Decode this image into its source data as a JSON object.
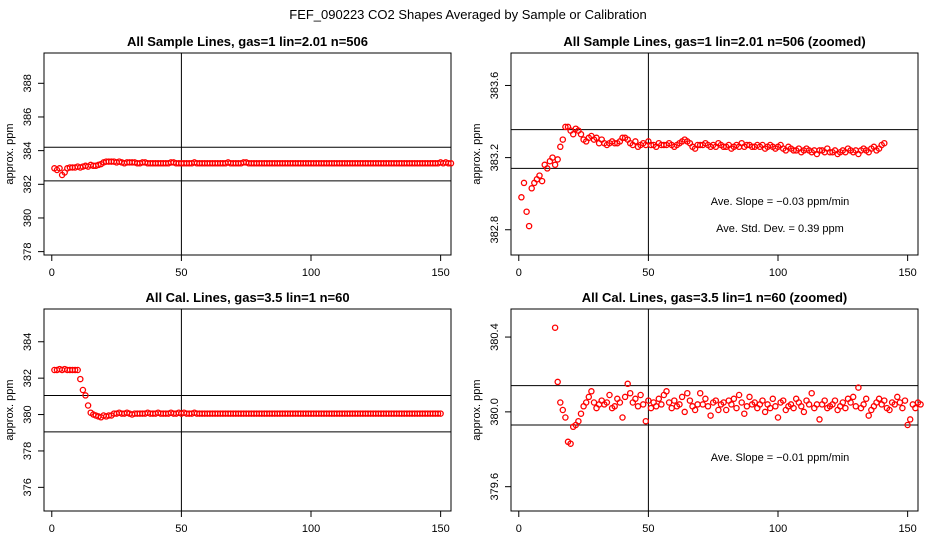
{
  "figure": {
    "title": "FEF_090223  CO2 Shapes Averaged by Sample or Calibration"
  },
  "colors": {
    "points": "#ff0000",
    "axes": "#000000"
  },
  "chart_data": [
    {
      "type": "scatter",
      "title": "All Sample Lines, gas=1 lin=2.01 n=506",
      "ylabel": "approx. ppm",
      "xlim": [
        -3,
        154
      ],
      "ylim": [
        377.8,
        389.8
      ],
      "xticks": [
        0,
        50,
        100,
        150
      ],
      "xtick_labels": [
        "0",
        "50",
        "100",
        "150"
      ],
      "yticks": [
        378,
        380,
        382,
        384,
        386,
        388
      ],
      "ytick_labels": [
        "378",
        "380",
        "382",
        "384",
        "386",
        "388"
      ],
      "hlines": [
        382.2,
        384.2
      ],
      "vline": 50,
      "annotations": [],
      "y": [
        382.95,
        382.85,
        382.95,
        382.55,
        382.7,
        382.95,
        383.0,
        383.0,
        383.0,
        383.05,
        383.0,
        383.05,
        383.1,
        383.05,
        383.15,
        383.1,
        383.1,
        383.15,
        383.2,
        383.3,
        383.35,
        383.35,
        383.35,
        383.35,
        383.3,
        383.35,
        383.3,
        383.25,
        383.3,
        383.3,
        383.3,
        383.3,
        383.25,
        383.25,
        383.3,
        383.3,
        383.25,
        383.25,
        383.25,
        383.25,
        383.25,
        383.25,
        383.25,
        383.25,
        383.25,
        383.3,
        383.3,
        383.25,
        383.25,
        383.25,
        383.25,
        383.25,
        383.25,
        383.25,
        383.3,
        383.25,
        383.25,
        383.25,
        383.25,
        383.25,
        383.25,
        383.25,
        383.25,
        383.25,
        383.25,
        383.25,
        383.25,
        383.3,
        383.25,
        383.25,
        383.25,
        383.25,
        383.25,
        383.3,
        383.3,
        383.25,
        383.25,
        383.25,
        383.25,
        383.25,
        383.25,
        383.25,
        383.25,
        383.25,
        383.25,
        383.25,
        383.25,
        383.25,
        383.25,
        383.25,
        383.25,
        383.25,
        383.25,
        383.25,
        383.25,
        383.25,
        383.25,
        383.25,
        383.25,
        383.25,
        383.25,
        383.25,
        383.25,
        383.25,
        383.25,
        383.25,
        383.25,
        383.25,
        383.25,
        383.25,
        383.25,
        383.25,
        383.25,
        383.25,
        383.25,
        383.25,
        383.25,
        383.25,
        383.25,
        383.25,
        383.25,
        383.25,
        383.25,
        383.25,
        383.25,
        383.25,
        383.25,
        383.25,
        383.25,
        383.25,
        383.25,
        383.25,
        383.25,
        383.25,
        383.25,
        383.25,
        383.25,
        383.25,
        383.25,
        383.25,
        383.25,
        383.25,
        383.25,
        383.25,
        383.25,
        383.25,
        383.25,
        383.25,
        383.25,
        383.3,
        383.25,
        383.3,
        383.25,
        383.25
      ]
    },
    {
      "type": "scatter",
      "title": "All Sample Lines, gas=1 lin=2.01 n=506 (zoomed)",
      "ylabel": "approx. ppm",
      "xlim": [
        -3,
        154
      ],
      "ylim": [
        382.66,
        383.78
      ],
      "xticks": [
        0,
        50,
        100,
        150
      ],
      "xtick_labels": [
        "0",
        "50",
        "100",
        "150"
      ],
      "yticks": [
        382.8,
        383.2,
        383.6
      ],
      "ytick_labels": [
        "382.8",
        "383.2",
        "383.6"
      ],
      "hlines": [
        383.14,
        383.355
      ],
      "vline": 50,
      "annotations": [
        "Ave. Slope =  −0.03  ppm/min",
        "Ave. Std. Dev. =  0.39  ppm"
      ],
      "y": [
        382.98,
        383.06,
        382.9,
        382.82,
        383.03,
        383.06,
        383.08,
        383.1,
        383.07,
        383.16,
        383.14,
        383.18,
        383.2,
        383.16,
        383.19,
        383.26,
        383.3,
        383.37,
        383.37,
        383.35,
        383.33,
        383.36,
        383.35,
        383.33,
        383.3,
        383.29,
        383.31,
        383.32,
        383.3,
        383.31,
        383.28,
        383.3,
        383.28,
        383.27,
        383.28,
        383.29,
        383.28,
        383.28,
        383.29,
        383.31,
        383.31,
        383.3,
        383.28,
        383.27,
        383.29,
        383.26,
        383.27,
        383.28,
        383.27,
        383.29,
        383.27,
        383.27,
        383.26,
        383.28,
        383.27,
        383.27,
        383.27,
        383.28,
        383.27,
        383.26,
        383.27,
        383.28,
        383.29,
        383.3,
        383.29,
        383.28,
        383.26,
        383.25,
        383.27,
        383.27,
        383.27,
        383.28,
        383.27,
        383.26,
        383.27,
        383.26,
        383.28,
        383.27,
        383.26,
        383.26,
        383.27,
        383.25,
        383.26,
        383.27,
        383.26,
        383.28,
        383.26,
        383.27,
        383.27,
        383.26,
        383.26,
        383.27,
        383.26,
        383.27,
        383.25,
        383.26,
        383.27,
        383.26,
        383.25,
        383.26,
        383.27,
        383.25,
        383.24,
        383.26,
        383.25,
        383.24,
        383.24,
        383.25,
        383.23,
        383.24,
        383.25,
        383.24,
        383.23,
        383.24,
        383.22,
        383.24,
        383.24,
        383.23,
        383.25,
        383.23,
        383.23,
        383.24,
        383.22,
        383.23,
        383.24,
        383.23,
        383.25,
        383.24,
        383.23,
        383.24,
        383.22,
        383.24,
        383.25,
        383.24,
        383.23,
        383.25,
        383.26,
        383.24,
        383.25,
        383.27,
        383.28
      ]
    },
    {
      "type": "scatter",
      "title": "All Cal. Lines, gas=3.5 lin=1 n=60",
      "ylabel": "approx. ppm",
      "xlim": [
        -3,
        154
      ],
      "ylim": [
        374.7,
        385.8
      ],
      "xticks": [
        0,
        50,
        100,
        150
      ],
      "xtick_labels": [
        "0",
        "50",
        "100",
        "150"
      ],
      "yticks": [
        376,
        378,
        380,
        382,
        384
      ],
      "ytick_labels": [
        "376",
        "378",
        "380",
        "382",
        "384"
      ],
      "hlines": [
        379.05,
        381.05
      ],
      "vline": 50,
      "annotations": [],
      "y": [
        382.45,
        382.45,
        382.5,
        382.45,
        382.5,
        382.45,
        382.45,
        382.45,
        382.45,
        382.45,
        381.95,
        381.35,
        381.05,
        380.5,
        380.1,
        380.0,
        379.95,
        379.9,
        379.85,
        379.95,
        379.9,
        379.95,
        379.95,
        380.05,
        380.05,
        380.1,
        380.05,
        380.05,
        380.1,
        380.05,
        380.0,
        380.05,
        380.05,
        380.05,
        380.05,
        380.05,
        380.1,
        380.05,
        380.05,
        380.05,
        380.1,
        380.05,
        380.05,
        380.05,
        380.05,
        380.1,
        380.05,
        380.05,
        380.1,
        380.05,
        380.1,
        380.05,
        380.05,
        380.05,
        380.1,
        380.05,
        380.05,
        380.05,
        380.05,
        380.05,
        380.05,
        380.05,
        380.05,
        380.05,
        380.05,
        380.05,
        380.05,
        380.05,
        380.05,
        380.05,
        380.05,
        380.05,
        380.05,
        380.05,
        380.05,
        380.05,
        380.05,
        380.05,
        380.05,
        380.05,
        380.05,
        380.05,
        380.05,
        380.05,
        380.05,
        380.05,
        380.05,
        380.05,
        380.05,
        380.05,
        380.05,
        380.05,
        380.05,
        380.05,
        380.05,
        380.05,
        380.05,
        380.05,
        380.05,
        380.05,
        380.05,
        380.05,
        380.05,
        380.05,
        380.05,
        380.05,
        380.05,
        380.05,
        380.05,
        380.05,
        380.05,
        380.05,
        380.05,
        380.05,
        380.05,
        380.05,
        380.05,
        380.05,
        380.05,
        380.05,
        380.05,
        380.05,
        380.05,
        380.05,
        380.05,
        380.05,
        380.05,
        380.05,
        380.05,
        380.05,
        380.05,
        380.05,
        380.05,
        380.05,
        380.05,
        380.05,
        380.05,
        380.05,
        380.05,
        380.05,
        380.05,
        380.05,
        380.05,
        380.05,
        380.05,
        380.05,
        380.05,
        380.05,
        380.05,
        380.05
      ]
    },
    {
      "type": "scatter",
      "title": "All Cal. Lines, gas=3.5 lin=1 n=60 (zoomed)",
      "ylabel": "approx. ppm",
      "xlim": [
        -3,
        154
      ],
      "ylim": [
        379.47,
        380.55
      ],
      "xticks": [
        0,
        50,
        100,
        150
      ],
      "xtick_labels": [
        "0",
        "50",
        "100",
        "150"
      ],
      "yticks": [
        379.6,
        380.0,
        380.4
      ],
      "ytick_labels": [
        "379.6",
        "380.0",
        "380.4"
      ],
      "hlines": [
        379.93,
        380.14
      ],
      "vline": 50,
      "annotations": [
        "Ave. Slope =  −0.01  ppm/min"
      ],
      "x_start": 14,
      "y": [
        380.45,
        380.16,
        380.05,
        380.01,
        379.97,
        379.84,
        379.83,
        379.92,
        379.93,
        379.95,
        379.99,
        380.03,
        380.05,
        380.08,
        380.11,
        380.05,
        380.02,
        380.04,
        380.06,
        380.04,
        380.05,
        380.09,
        380.02,
        380.03,
        380.07,
        380.05,
        379.97,
        380.08,
        380.15,
        380.1,
        380.05,
        380.07,
        380.03,
        380.09,
        380.04,
        379.95,
        380.06,
        380.02,
        380.05,
        380.03,
        380.07,
        380.04,
        380.09,
        380.11,
        380.05,
        380.02,
        380.06,
        380.03,
        380.04,
        380.08,
        380.0,
        380.1,
        380.06,
        380.03,
        380.01,
        380.04,
        380.1,
        380.04,
        380.07,
        380.03,
        379.98,
        380.05,
        380.06,
        380.01,
        380.04,
        380.05,
        380.01,
        380.06,
        380.04,
        380.07,
        380.02,
        380.09,
        380.05,
        379.99,
        380.03,
        380.08,
        380.04,
        380.05,
        380.02,
        380.04,
        380.06,
        380.0,
        380.04,
        380.02,
        380.07,
        380.03,
        379.97,
        380.05,
        380.06,
        380.01,
        380.03,
        380.04,
        380.02,
        380.07,
        380.05,
        380.03,
        380.0,
        380.06,
        380.04,
        380.1,
        380.02,
        380.04,
        379.96,
        380.04,
        380.06,
        380.02,
        380.03,
        380.04,
        380.06,
        380.01,
        380.03,
        380.05,
        380.02,
        380.07,
        380.05,
        380.08,
        380.03,
        380.13,
        380.02,
        380.04,
        380.07,
        379.98,
        380.01,
        380.03,
        380.05,
        380.07,
        380.04,
        380.06,
        380.02,
        380.01,
        380.05,
        380.04,
        380.08,
        380.05,
        380.02,
        380.06,
        379.93,
        379.96,
        380.04,
        380.02,
        380.05,
        380.04
      ]
    }
  ]
}
